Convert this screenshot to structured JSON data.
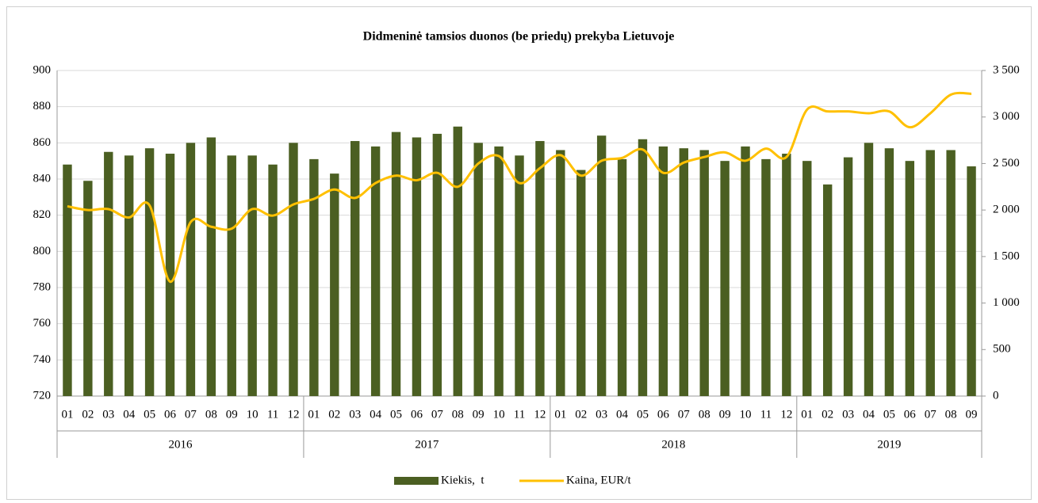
{
  "chart_data": {
    "type": "bar_line",
    "title": "Didmeninė tamsios duonos (be priedų) prekyba Lietuvoje",
    "categories": [
      "01",
      "02",
      "03",
      "04",
      "05",
      "06",
      "07",
      "08",
      "09",
      "10",
      "11",
      "12",
      "01",
      "02",
      "03",
      "04",
      "05",
      "06",
      "07",
      "08",
      "09",
      "10",
      "11",
      "12",
      "01",
      "02",
      "03",
      "04",
      "05",
      "06",
      "07",
      "08",
      "09",
      "10",
      "11",
      "12",
      "01",
      "02",
      "03",
      "04",
      "05",
      "06",
      "07",
      "08",
      "09"
    ],
    "category_groups": [
      "2016",
      "2017",
      "2018",
      "2019"
    ],
    "series": [
      {
        "name": "Kiekis,  t",
        "type": "bar",
        "color": "#4b5f22",
        "axis": "y",
        "values": [
          848,
          839,
          855,
          853,
          857,
          854,
          860,
          863,
          853,
          853,
          848,
          860,
          851,
          843,
          861,
          858,
          866,
          863,
          865,
          869,
          860,
          858,
          853,
          861,
          856,
          845,
          864,
          851,
          862,
          858,
          857,
          856,
          850,
          858,
          851,
          854,
          850,
          837,
          852,
          860,
          857,
          850,
          856,
          856,
          847
        ]
      },
      {
        "name": "Kaina, EUR/t",
        "type": "line",
        "color": "#ffc000",
        "axis": "y2",
        "values": [
          2040,
          2000,
          2010,
          1920,
          2050,
          1230,
          1870,
          1820,
          1800,
          2010,
          1940,
          2060,
          2120,
          2220,
          2130,
          2290,
          2370,
          2320,
          2400,
          2250,
          2500,
          2580,
          2290,
          2450,
          2590,
          2370,
          2530,
          2560,
          2650,
          2400,
          2510,
          2570,
          2620,
          2530,
          2660,
          2570,
          3080,
          3060,
          3060,
          3040,
          3060,
          2890,
          3040,
          3240,
          3250
        ]
      }
    ],
    "ylim": [
      720,
      900
    ],
    "yticks": [
      720,
      740,
      760,
      780,
      800,
      820,
      840,
      860,
      880,
      900
    ],
    "y2lim": [
      0,
      3500
    ],
    "y2ticks": [
      0,
      500,
      {
        "value": 1000,
        "label": "1 000"
      },
      {
        "value": 1500,
        "label": "1 500"
      },
      {
        "value": 2000,
        "label": "2 000"
      },
      {
        "value": 2500,
        "label": "2 500"
      },
      {
        "value": 3000,
        "label": "3 000"
      },
      {
        "value": 3500,
        "label": "3 500"
      }
    ],
    "grid": true,
    "legend": "bottom"
  }
}
